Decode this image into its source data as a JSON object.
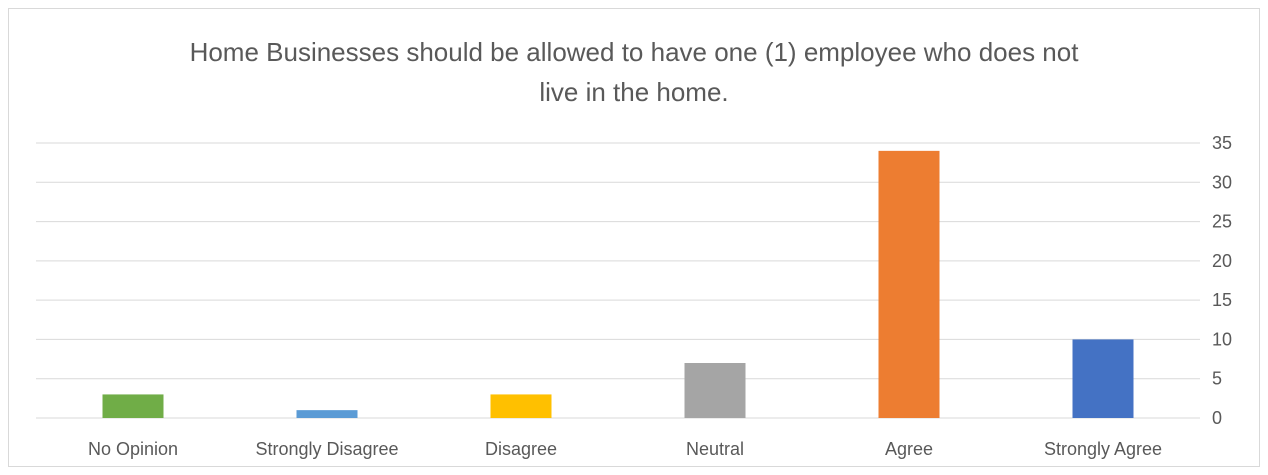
{
  "chart_data": {
    "type": "bar",
    "title_lines": [
      "Home Businesses should be allowed to have one (1) employee who does not",
      "live in the home."
    ],
    "categories": [
      "No Opinion",
      "Strongly Disagree",
      "Disagree",
      "Neutral",
      "Agree",
      "Strongly Agree"
    ],
    "values": [
      3,
      1,
      3,
      7,
      34,
      10
    ],
    "colors": [
      "#70ad47",
      "#5b9bd5",
      "#ffc000",
      "#a5a5a5",
      "#ed7d31",
      "#4472c4"
    ],
    "gridline_color": "#d9d9d9",
    "ylim": [
      0,
      35
    ],
    "yticks": [
      0,
      5,
      10,
      15,
      20,
      25,
      30,
      35
    ],
    "y_axis_side": "right",
    "grid": true,
    "legend": "none"
  }
}
